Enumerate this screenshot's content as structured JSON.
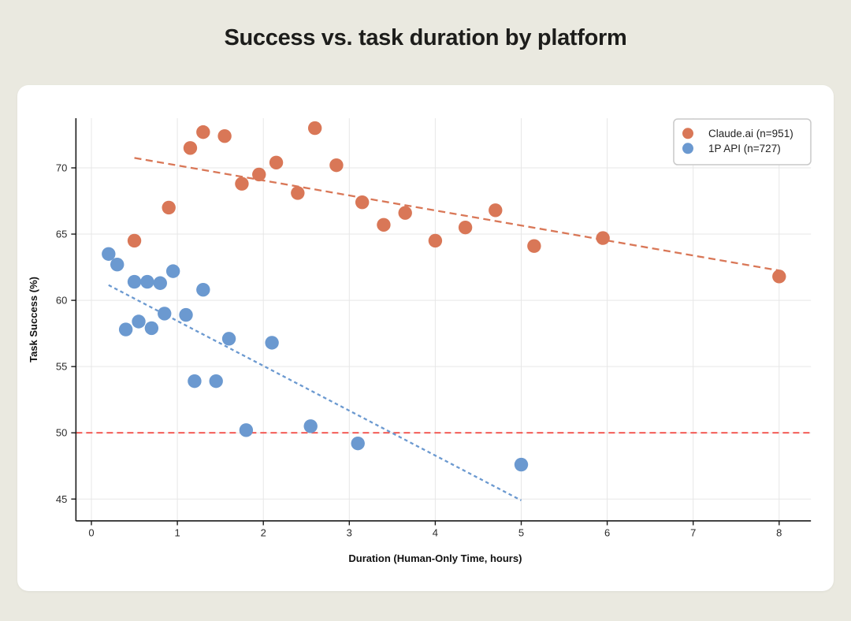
{
  "page": {
    "background_color": "#eae9e0",
    "card_background_color": "#ffffff"
  },
  "title": "Success vs. task duration by platform",
  "chart_data": {
    "type": "scatter",
    "title": "Success vs. task duration by platform",
    "xlabel": "Duration (Human-Only Time, hours)",
    "ylabel": "Task Success (%)",
    "xlim": [
      -0.18,
      8.37
    ],
    "ylim": [
      43.35,
      73.75
    ],
    "x_ticks": [
      0,
      1,
      2,
      3,
      4,
      5,
      6,
      7,
      8
    ],
    "y_ticks": [
      45,
      50,
      55,
      60,
      65,
      70
    ],
    "grid": true,
    "grid_color": "#e7e7e7",
    "spine_color": "#1a1a1a",
    "legend_position": "top-right",
    "legend_border_color": "#c9c9c9",
    "series": [
      {
        "id": "claude-ai",
        "name": "Claude.ai (n=951)",
        "color": "#d97757",
        "marker_radius": 8.7,
        "points": [
          [
            0.5,
            64.5
          ],
          [
            0.9,
            67.0
          ],
          [
            1.15,
            71.5
          ],
          [
            1.3,
            72.7
          ],
          [
            1.55,
            72.4
          ],
          [
            1.75,
            68.8
          ],
          [
            1.95,
            69.5
          ],
          [
            2.15,
            70.4
          ],
          [
            2.4,
            68.1
          ],
          [
            2.6,
            73.0
          ],
          [
            2.85,
            70.2
          ],
          [
            3.15,
            67.4
          ],
          [
            3.4,
            65.7
          ],
          [
            3.65,
            66.6
          ],
          [
            4.0,
            64.5
          ],
          [
            4.35,
            65.5
          ],
          [
            4.7,
            66.8
          ],
          [
            5.15,
            64.1
          ],
          [
            5.95,
            64.7
          ],
          [
            8.0,
            61.8
          ]
        ],
        "trendline": {
          "style": "dashed",
          "from": [
            0.5,
            70.75
          ],
          "to": [
            8.0,
            62.25
          ]
        }
      },
      {
        "id": "1p-api",
        "name": "1P API (n=727)",
        "color": "#6b99d0",
        "marker_radius": 8.7,
        "points": [
          [
            0.2,
            63.5
          ],
          [
            0.3,
            62.7
          ],
          [
            0.4,
            57.8
          ],
          [
            0.5,
            61.4
          ],
          [
            0.55,
            58.4
          ],
          [
            0.65,
            61.4
          ],
          [
            0.7,
            57.9
          ],
          [
            0.8,
            61.3
          ],
          [
            0.85,
            59.0
          ],
          [
            0.95,
            62.2
          ],
          [
            1.1,
            58.9
          ],
          [
            1.2,
            53.9
          ],
          [
            1.3,
            60.8
          ],
          [
            1.45,
            53.9
          ],
          [
            1.6,
            57.1
          ],
          [
            1.8,
            50.2
          ],
          [
            2.1,
            56.8
          ],
          [
            2.55,
            50.5
          ],
          [
            3.1,
            49.2
          ],
          [
            5.0,
            47.6
          ]
        ],
        "trendline": {
          "style": "dashed",
          "from": [
            0.2,
            61.15
          ],
          "to": [
            5.0,
            44.9
          ]
        }
      }
    ],
    "reference_line": {
      "y": 50,
      "color": "#f2504a",
      "style": "dashed"
    }
  }
}
